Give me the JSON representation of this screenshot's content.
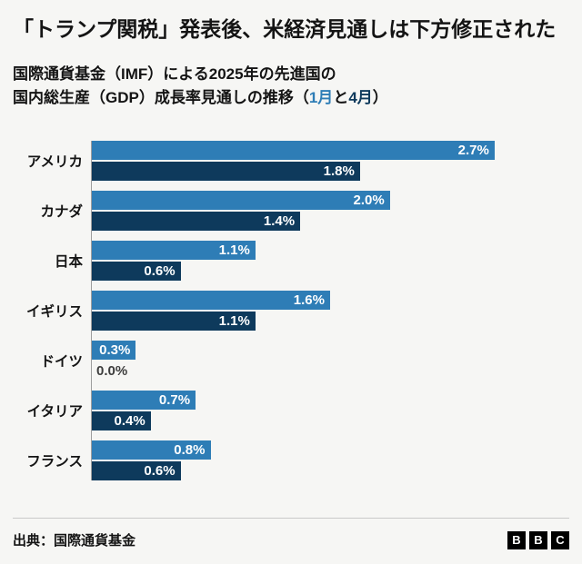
{
  "header": {
    "title": "「トランプ関税」発表後、米経済見通しは下方修正された",
    "subtitle_line1": "国際通貨基金（IMF）による2025年の先進国の",
    "subtitle_line2_segments": [
      {
        "text": "国内総生産（GDP）成長率見通しの推移（",
        "color": "text"
      },
      {
        "text": "1月",
        "color": "jan_blue"
      },
      {
        "text": "と",
        "color": "text"
      },
      {
        "text": "4月",
        "color": "apr_navy"
      },
      {
        "text": "）",
        "color": "text"
      }
    ]
  },
  "colors": {
    "jan_blue": "#2e7db6",
    "apr_navy": "#0e3a5c",
    "text": "#141414",
    "outside_label": "#3d3d3d",
    "background": "#f6f6f4"
  },
  "chart_data": {
    "type": "bar",
    "orientation": "horizontal",
    "title": "「トランプ関税」発表後、米経済見通しは下方修正された",
    "subtitle": "国際通貨基金（IMF）による2025年の先進国の国内総生産（GDP）成長率見通しの推移（1月と4月）",
    "categories": [
      "アメリカ",
      "カナダ",
      "日本",
      "イギリス",
      "ドイツ",
      "イタリア",
      "フランス"
    ],
    "series": [
      {
        "key": "january",
        "name": "1月",
        "color_key": "jan_blue",
        "values": [
          2.7,
          2.0,
          1.1,
          1.6,
          0.3,
          0.7,
          0.8
        ]
      },
      {
        "key": "april",
        "name": "4月",
        "color_key": "apr_navy",
        "values": [
          1.8,
          1.4,
          0.6,
          1.1,
          0.0,
          0.4,
          0.6
        ]
      }
    ],
    "value_suffix": "%",
    "xlim": [
      0,
      3.2
    ],
    "grid": false,
    "legend_position": "in-subtitle",
    "data_labels": true
  },
  "footer": {
    "source": "出典：国際通貨基金",
    "logo_letters": [
      "B",
      "B",
      "C"
    ]
  }
}
